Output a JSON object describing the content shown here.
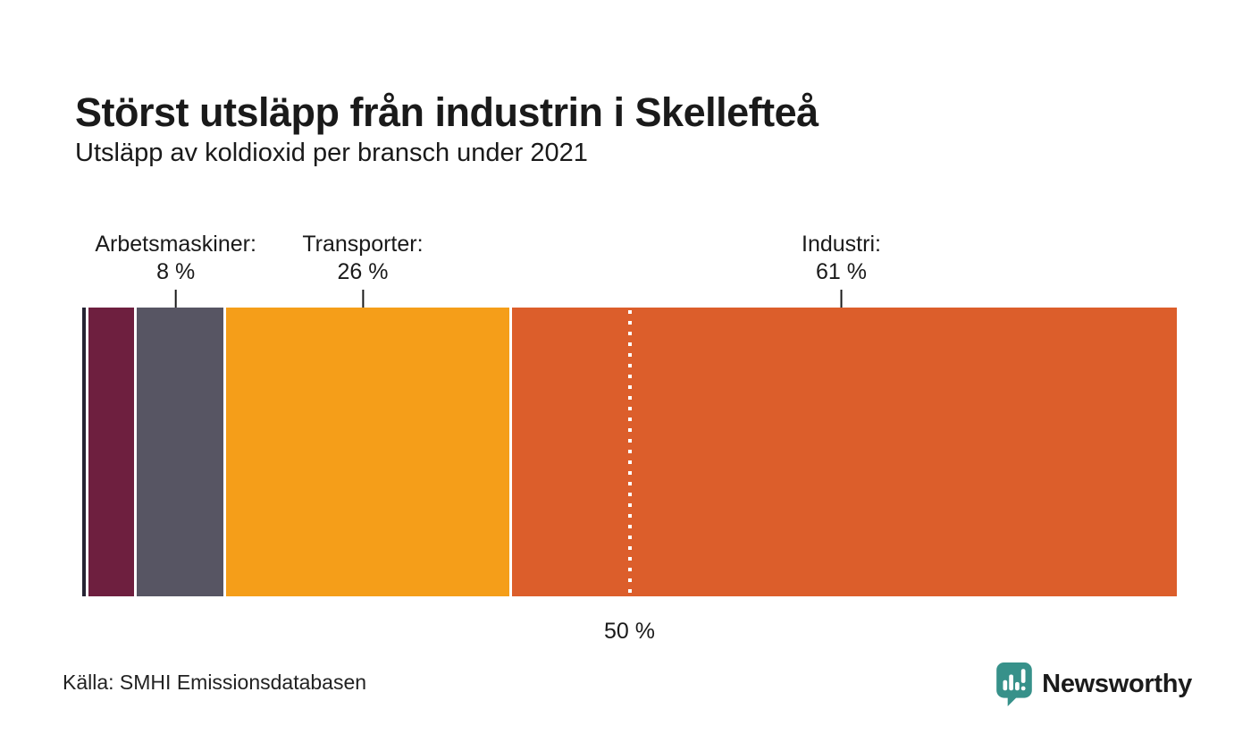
{
  "header": {
    "title": "Störst utsläpp från industrin i Skellefteå",
    "subtitle": "Utsläpp av koldioxid per bransch under 2021"
  },
  "chart_data": {
    "type": "bar",
    "variant": "horizontal-stacked-single-bar",
    "unit": "%",
    "xlim": [
      0,
      100
    ],
    "segments": [
      {
        "label": "",
        "value": 0.3,
        "color": "#262433",
        "annotation": "",
        "annotation_value": ""
      },
      {
        "label": "",
        "value": 4.2,
        "color": "#6e1f3f",
        "annotation": "",
        "annotation_value": ""
      },
      {
        "label": "Arbetsmaskiner",
        "value": 8,
        "color": "#575563",
        "annotation": "Arbetsmaskiner:",
        "annotation_value": "8 %"
      },
      {
        "label": "Transporter",
        "value": 26,
        "color": "#f59e19",
        "annotation": "Transporter:",
        "annotation_value": "26 %"
      },
      {
        "label": "Industri",
        "value": 61,
        "color": "#dc5e2b",
        "annotation": "Industri:",
        "annotation_value": "61 %"
      }
    ],
    "axis_marker": {
      "label": "50 %",
      "position": 50,
      "style": "white-dotted-vertical-line"
    }
  },
  "footer": {
    "source": "Källa: SMHI Emissionsdatabasen",
    "brand": {
      "name": "Newsworthy",
      "color": "#37918a",
      "icon": "newsworthy-speech-bubble-bar-chart-icon"
    }
  }
}
